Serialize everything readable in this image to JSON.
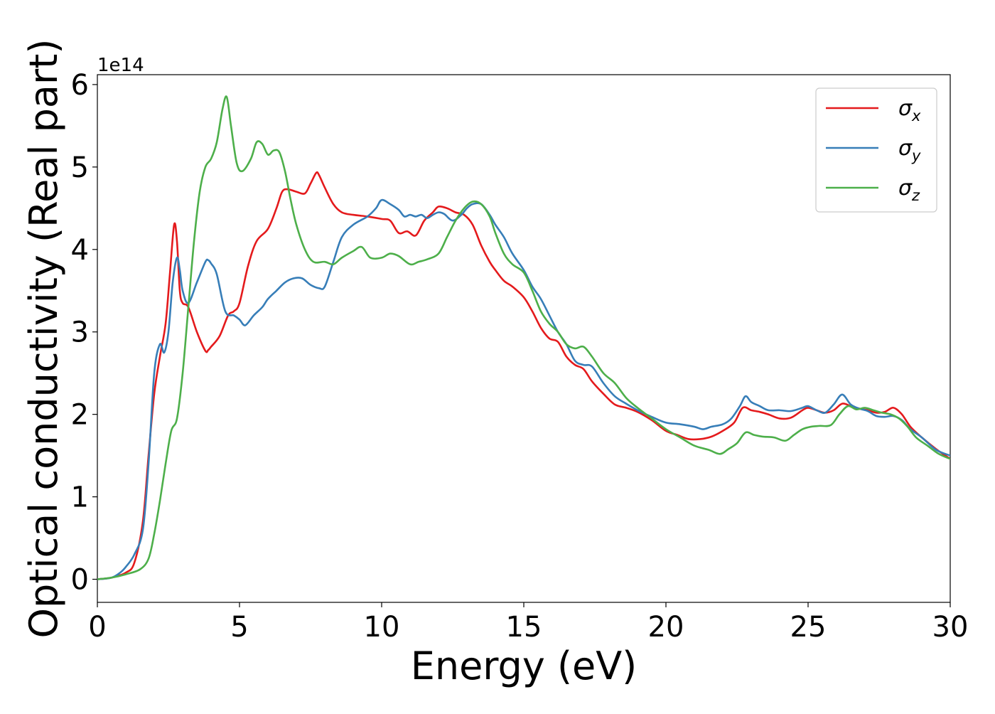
{
  "chart_data": {
    "type": "line",
    "xlabel": "Energy (eV)",
    "ylabel": "Optical conductivity (Real part)",
    "y_offset_label": "1e14",
    "y_scale_factor": 100000000000000.0,
    "xlim": [
      0,
      30
    ],
    "ylim": [
      -0.28,
      6.12
    ],
    "x_ticks": [
      0,
      5,
      10,
      15,
      20,
      25,
      30
    ],
    "x_tick_labels": [
      "0",
      "5",
      "10",
      "15",
      "20",
      "25",
      "30"
    ],
    "y_ticks": [
      0,
      1,
      2,
      3,
      4,
      5,
      6
    ],
    "y_tick_labels": [
      "0",
      "1",
      "2",
      "3",
      "4",
      "5",
      "6"
    ],
    "grid": false,
    "legend_position": "top-right",
    "series": [
      {
        "name": "σ",
        "subscript": "x",
        "color": "#e41a1c",
        "x": [
          0,
          0.5,
          1.0,
          1.3,
          1.6,
          1.8,
          2.0,
          2.2,
          2.4,
          2.55,
          2.7,
          2.8,
          2.9,
          3.0,
          3.2,
          3.5,
          3.8,
          3.9,
          4.0,
          4.3,
          4.6,
          4.8,
          5.0,
          5.3,
          5.6,
          6.0,
          6.3,
          6.5,
          6.7,
          7.0,
          7.3,
          7.5,
          7.7,
          7.8,
          8.0,
          8.3,
          8.6,
          9.0,
          9.5,
          10.0,
          10.3,
          10.6,
          10.9,
          11.2,
          11.5,
          11.8,
          12.0,
          12.3,
          12.6,
          12.9,
          13.2,
          13.5,
          13.8,
          14.0,
          14.3,
          14.6,
          15.0,
          15.3,
          15.6,
          15.9,
          16.2,
          16.5,
          16.8,
          17.1,
          17.4,
          17.8,
          18.2,
          18.6,
          19.0,
          19.5,
          20.0,
          20.4,
          20.8,
          21.2,
          21.6,
          22.0,
          22.4,
          22.7,
          23.0,
          23.3,
          23.6,
          24.0,
          24.4,
          24.8,
          25.0,
          25.3,
          25.6,
          25.9,
          26.2,
          26.5,
          26.8,
          27.1,
          27.4,
          27.7,
          28.0,
          28.3,
          28.6,
          29.0,
          29.5,
          30.0
        ],
        "values": [
          0.0,
          0.02,
          0.08,
          0.2,
          0.7,
          1.5,
          2.25,
          2.7,
          3.1,
          3.7,
          4.3,
          4.1,
          3.5,
          3.35,
          3.3,
          3.0,
          2.77,
          2.78,
          2.82,
          2.95,
          3.2,
          3.25,
          3.35,
          3.8,
          4.1,
          4.25,
          4.5,
          4.7,
          4.73,
          4.7,
          4.68,
          4.8,
          4.93,
          4.9,
          4.75,
          4.55,
          4.45,
          4.42,
          4.4,
          4.37,
          4.35,
          4.2,
          4.22,
          4.17,
          4.35,
          4.45,
          4.52,
          4.5,
          4.45,
          4.42,
          4.3,
          4.05,
          3.85,
          3.75,
          3.62,
          3.55,
          3.42,
          3.25,
          3.05,
          2.92,
          2.88,
          2.7,
          2.6,
          2.55,
          2.4,
          2.25,
          2.12,
          2.08,
          2.03,
          1.93,
          1.8,
          1.75,
          1.7,
          1.7,
          1.73,
          1.8,
          1.9,
          2.08,
          2.05,
          2.03,
          2.0,
          1.95,
          1.96,
          2.05,
          2.08,
          2.05,
          2.02,
          2.05,
          2.13,
          2.1,
          2.07,
          2.05,
          2.02,
          2.03,
          2.08,
          2.0,
          1.85,
          1.72,
          1.58,
          1.46
        ]
      },
      {
        "name": "σ",
        "subscript": "y",
        "color": "#377eb8",
        "x": [
          0,
          0.5,
          0.8,
          1.0,
          1.3,
          1.6,
          1.8,
          2.0,
          2.2,
          2.35,
          2.5,
          2.65,
          2.8,
          2.9,
          3.0,
          3.2,
          3.5,
          3.8,
          3.9,
          4.0,
          4.2,
          4.5,
          4.8,
          5.0,
          5.2,
          5.5,
          5.8,
          6.0,
          6.3,
          6.6,
          6.9,
          7.2,
          7.5,
          7.8,
          8.0,
          8.3,
          8.6,
          9.0,
          9.5,
          9.8,
          10.0,
          10.3,
          10.6,
          10.8,
          11.0,
          11.2,
          11.4,
          11.6,
          11.8,
          12.0,
          12.2,
          12.5,
          12.8,
          13.0,
          13.2,
          13.5,
          13.8,
          14.0,
          14.3,
          14.6,
          15.0,
          15.3,
          15.6,
          15.9,
          16.2,
          16.5,
          16.8,
          17.1,
          17.4,
          17.8,
          18.2,
          18.6,
          19.0,
          19.5,
          20.0,
          20.5,
          21.0,
          21.3,
          21.6,
          22.0,
          22.3,
          22.6,
          22.8,
          23.0,
          23.3,
          23.6,
          24.0,
          24.4,
          24.8,
          25.0,
          25.3,
          25.6,
          25.9,
          26.2,
          26.5,
          26.8,
          27.1,
          27.4,
          27.7,
          28.0,
          28.3,
          28.6,
          29.0,
          29.5,
          30.0
        ],
        "values": [
          0.0,
          0.02,
          0.08,
          0.15,
          0.3,
          0.6,
          1.4,
          2.5,
          2.85,
          2.75,
          3.0,
          3.6,
          3.9,
          3.75,
          3.5,
          3.35,
          3.6,
          3.85,
          3.87,
          3.83,
          3.7,
          3.25,
          3.2,
          3.15,
          3.08,
          3.2,
          3.3,
          3.4,
          3.5,
          3.6,
          3.65,
          3.65,
          3.57,
          3.53,
          3.55,
          3.85,
          4.15,
          4.3,
          4.4,
          4.5,
          4.6,
          4.55,
          4.48,
          4.4,
          4.42,
          4.4,
          4.42,
          4.38,
          4.42,
          4.45,
          4.43,
          4.35,
          4.42,
          4.5,
          4.55,
          4.55,
          4.42,
          4.3,
          4.15,
          3.95,
          3.75,
          3.55,
          3.4,
          3.2,
          3.0,
          2.85,
          2.65,
          2.6,
          2.58,
          2.38,
          2.22,
          2.13,
          2.05,
          1.97,
          1.9,
          1.88,
          1.85,
          1.82,
          1.85,
          1.88,
          1.95,
          2.1,
          2.22,
          2.15,
          2.1,
          2.05,
          2.05,
          2.04,
          2.08,
          2.1,
          2.05,
          2.02,
          2.12,
          2.24,
          2.12,
          2.07,
          2.04,
          1.98,
          1.97,
          1.98,
          1.93,
          1.82,
          1.72,
          1.57,
          1.5
        ]
      },
      {
        "name": "σ",
        "subscript": "z",
        "color": "#4daf4a",
        "x": [
          0,
          0.5,
          1.0,
          1.5,
          1.8,
          2.0,
          2.2,
          2.4,
          2.6,
          2.8,
          3.0,
          3.2,
          3.4,
          3.6,
          3.8,
          4.0,
          4.2,
          4.4,
          4.55,
          4.7,
          4.9,
          5.1,
          5.4,
          5.6,
          5.8,
          6.0,
          6.2,
          6.4,
          6.6,
          6.8,
          7.0,
          7.3,
          7.6,
          8.0,
          8.3,
          8.6,
          9.0,
          9.3,
          9.6,
          10.0,
          10.3,
          10.6,
          11.0,
          11.3,
          11.6,
          12.0,
          12.3,
          12.6,
          12.9,
          13.2,
          13.5,
          13.8,
          14.0,
          14.3,
          14.6,
          15.0,
          15.3,
          15.6,
          15.9,
          16.2,
          16.5,
          16.8,
          17.1,
          17.4,
          17.8,
          18.2,
          18.6,
          19.0,
          19.5,
          20.0,
          20.5,
          21.0,
          21.5,
          21.9,
          22.2,
          22.5,
          22.8,
          23.1,
          23.4,
          23.8,
          24.2,
          24.5,
          24.8,
          25.1,
          25.4,
          25.8,
          26.1,
          26.4,
          26.7,
          27.0,
          27.3,
          27.6,
          27.9,
          28.2,
          28.5,
          28.8,
          29.2,
          29.6,
          30.0
        ],
        "values": [
          0.0,
          0.02,
          0.06,
          0.12,
          0.25,
          0.55,
          0.95,
          1.4,
          1.8,
          1.95,
          2.5,
          3.3,
          4.1,
          4.7,
          5.0,
          5.1,
          5.3,
          5.7,
          5.85,
          5.5,
          5.05,
          4.95,
          5.1,
          5.3,
          5.28,
          5.15,
          5.2,
          5.18,
          4.95,
          4.6,
          4.3,
          4.0,
          3.85,
          3.85,
          3.82,
          3.9,
          3.98,
          4.03,
          3.9,
          3.9,
          3.95,
          3.92,
          3.82,
          3.85,
          3.88,
          3.95,
          4.15,
          4.35,
          4.5,
          4.58,
          4.55,
          4.4,
          4.2,
          3.95,
          3.82,
          3.72,
          3.5,
          3.25,
          3.1,
          3.0,
          2.85,
          2.8,
          2.82,
          2.7,
          2.5,
          2.38,
          2.2,
          2.08,
          1.95,
          1.82,
          1.72,
          1.62,
          1.57,
          1.52,
          1.58,
          1.65,
          1.78,
          1.75,
          1.73,
          1.72,
          1.68,
          1.75,
          1.82,
          1.85,
          1.86,
          1.87,
          2.0,
          2.1,
          2.06,
          2.08,
          2.05,
          2.02,
          2.0,
          1.95,
          1.85,
          1.72,
          1.62,
          1.52,
          1.46
        ]
      }
    ]
  }
}
